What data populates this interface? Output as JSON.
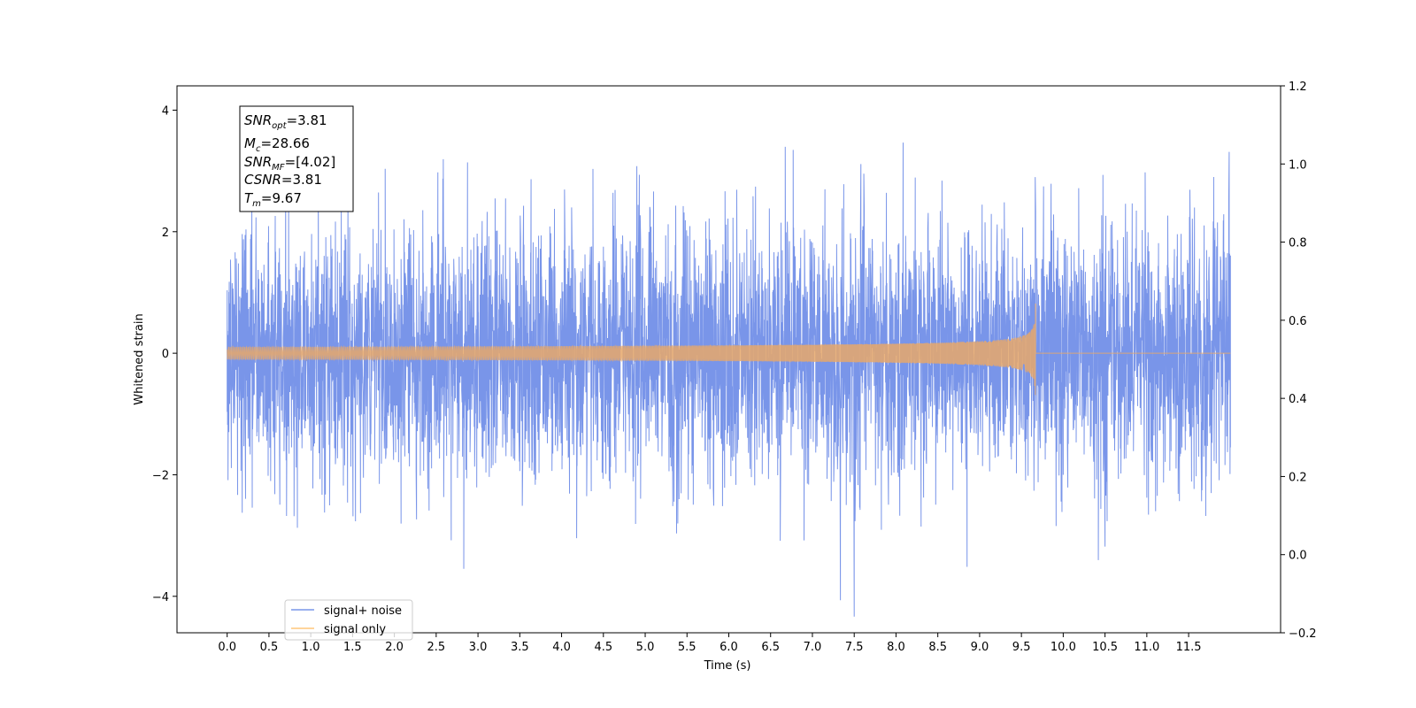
{
  "chart_data": {
    "type": "line",
    "title": "",
    "xlabel": "Time (s)",
    "ylabel": "Whitened strain",
    "xlim": [
      -0.6,
      12.6
    ],
    "ylim": [
      -4.6,
      4.4
    ],
    "ylim_right": [
      -0.2,
      1.2
    ],
    "x_ticks": [
      0.0,
      0.5,
      1.0,
      1.5,
      2.0,
      2.5,
      3.0,
      3.5,
      4.0,
      4.5,
      5.0,
      5.5,
      6.0,
      6.5,
      7.0,
      7.5,
      8.0,
      8.5,
      9.0,
      9.5,
      10.0,
      10.5,
      11.0,
      11.5
    ],
    "x_tick_labels": [
      "0.0",
      "0.5",
      "1.0",
      "1.5",
      "2.0",
      "2.5",
      "3.0",
      "3.5",
      "4.0",
      "4.5",
      "5.0",
      "5.5",
      "6.0",
      "6.5",
      "7.0",
      "7.5",
      "8.0",
      "8.5",
      "9.0",
      "9.5",
      "10.0",
      "10.5",
      "11.0",
      "11.5"
    ],
    "y_ticks": [
      4,
      2,
      0,
      -2,
      -4
    ],
    "y_tick_labels": [
      "4",
      "2",
      "0",
      "−2",
      "−4"
    ],
    "y_right_ticks": [
      1.2,
      1.0,
      0.8,
      0.6,
      0.4,
      0.2,
      0.0,
      -0.2
    ],
    "y_right_tick_labels": [
      "1.2",
      "1.0",
      "0.8",
      "0.6",
      "0.4",
      "0.2",
      "0.0",
      "−0.2"
    ],
    "grid": false,
    "legend_position": "lower-left",
    "series": [
      {
        "name": "signal+ noise",
        "color": "#7995e9",
        "kind": "noisy strain, roughly Gaussian, std ~1.1, peaks ~±4",
        "x_range": [
          0.0,
          12.0
        ],
        "envelope": {
          "max": 4.02,
          "min": -4.21,
          "typical_abs": 2.6
        }
      },
      {
        "name": "signal only",
        "color": "#ffc77a",
        "kind": "chirp waveform",
        "x_range": [
          0.0,
          12.0
        ],
        "merger_time": 9.67,
        "peak_amplitude": 0.95,
        "peak_min": -0.85
      }
    ],
    "annotations": {
      "snr_opt": {
        "sym": "SNR",
        "sub": "opt",
        "text": "=3.81"
      },
      "mc": {
        "sym": "M",
        "sub": "c",
        "text": "=28.66"
      },
      "snr_mf": {
        "sym": "SNR",
        "sub": "MF",
        "text": "=[4.02]"
      },
      "csnr": {
        "sym": "CSNR",
        "sub": "",
        "text": "=3.81"
      },
      "tm": {
        "sym": "T",
        "sub": "m",
        "text": "=9.67"
      }
    }
  }
}
